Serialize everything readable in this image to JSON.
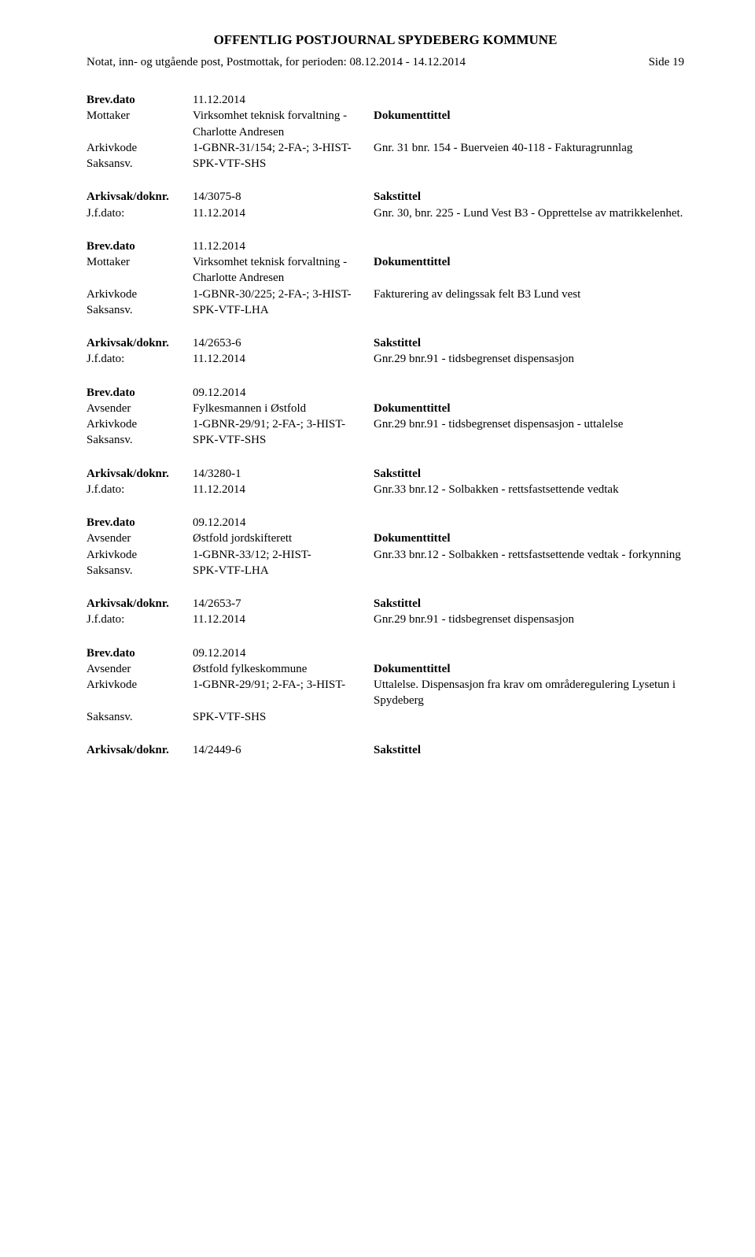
{
  "header": {
    "title": "OFFENTLIG POSTJOURNAL SPYDEBERG KOMMUNE",
    "subtitle": "Notat, inn- og utgående post, Postmottak, for perioden: 08.12.2014 - 14.12.2014",
    "side_label": "Side 19"
  },
  "labels": {
    "brevdato": "Brev.dato",
    "mottaker": "Mottaker",
    "avsender": "Avsender",
    "arkivkode": "Arkivkode",
    "saksansv": "Saksansv.",
    "arkivsak": "Arkivsak/doknr.",
    "jfdato": "J.f.dato:",
    "dokumenttittel": "Dokumenttittel",
    "sakstittel": "Sakstittel"
  },
  "entries": [
    {
      "type": "doc",
      "brevdato": "11.12.2014",
      "party_label": "Mottaker",
      "party": "Virksomhet teknisk forvaltning - Charlotte Andresen",
      "arkivkode": "1-GBNR-31/154; 2-FA-; 3-HIST-",
      "doktittel": "Gnr. 31 bnr. 154 - Buerveien 40-118 - Fakturagrunnlag",
      "saksansv": "SPK-VTF-SHS"
    },
    {
      "type": "sak",
      "arkivsak": "14/3075-8",
      "jfdato": "11.12.2014",
      "sakstittel": "Gnr. 30, bnr. 225 - Lund Vest B3 - Opprettelse av matrikkelenhet."
    },
    {
      "type": "doc",
      "brevdato": "11.12.2014",
      "party_label": "Mottaker",
      "party": "Virksomhet teknisk forvaltning - Charlotte Andresen",
      "arkivkode": "1-GBNR-30/225; 2-FA-; 3-HIST-",
      "doktittel": "Fakturering av delingssak felt B3 Lund vest",
      "saksansv": "SPK-VTF-LHA"
    },
    {
      "type": "sak",
      "arkivsak": "14/2653-6",
      "jfdato": "11.12.2014",
      "sakstittel": "Gnr.29 bnr.91 - tidsbegrenset dispensasjon"
    },
    {
      "type": "doc",
      "brevdato": "09.12.2014",
      "party_label": "Avsender",
      "party": "Fylkesmannen i Østfold",
      "arkivkode": "1-GBNR-29/91; 2-FA-; 3-HIST-",
      "doktittel": "Gnr.29 bnr.91 - tidsbegrenset dispensasjon - uttalelse",
      "saksansv": "SPK-VTF-SHS"
    },
    {
      "type": "sak",
      "arkivsak": "14/3280-1",
      "jfdato": "11.12.2014",
      "sakstittel": "Gnr.33 bnr.12 - Solbakken - rettsfastsettende vedtak"
    },
    {
      "type": "doc",
      "brevdato": "09.12.2014",
      "party_label": "Avsender",
      "party": "Østfold jordskifterett",
      "arkivkode": "1-GBNR-33/12; 2-HIST-",
      "doktittel": "Gnr.33 bnr.12 - Solbakken - rettsfastsettende vedtak - forkynning",
      "saksansv": "SPK-VTF-LHA"
    },
    {
      "type": "sak",
      "arkivsak": "14/2653-7",
      "jfdato": "11.12.2014",
      "sakstittel": "Gnr.29 bnr.91 - tidsbegrenset dispensasjon"
    },
    {
      "type": "doc",
      "brevdato": "09.12.2014",
      "party_label": "Avsender",
      "party": "Østfold fylkeskommune",
      "arkivkode": "1-GBNR-29/91; 2-FA-; 3-HIST-",
      "doktittel": "Uttalelse. Dispensasjon fra krav om områderegulering Lysetun i Spydeberg",
      "saksansv": "SPK-VTF-SHS"
    },
    {
      "type": "sak-short",
      "arkivsak": "14/2449-6"
    }
  ]
}
